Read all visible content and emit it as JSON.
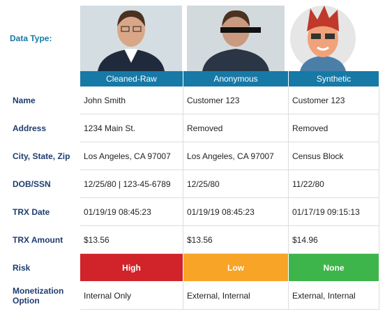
{
  "header": {
    "label": "Data Type:",
    "columns": [
      "Cleaned-Raw",
      "Anonymous",
      "Synthetic"
    ]
  },
  "table": {
    "rows": [
      {
        "label": "Name",
        "cells": [
          "John Smith",
          "Customer 123",
          "Customer 123"
        ]
      },
      {
        "label": "Address",
        "cells": [
          "1234 Main St.",
          "Removed",
          "Removed"
        ]
      },
      {
        "label": "City, State, Zip",
        "cells": [
          "Los Angeles, CA 97007",
          "Los Angeles, CA 97007",
          "Census Block"
        ]
      },
      {
        "label": "DOB/SSN",
        "cells": [
          "12/25/80 | 123-45-6789",
          "12/25/80",
          "11/22/80"
        ]
      },
      {
        "label": "TRX Date",
        "cells": [
          "01/19/19 08:45:23",
          "01/19/19 08:45:23",
          "01/17/19 09:15:13"
        ]
      },
      {
        "label": "TRX Amount",
        "cells": [
          "$13.56",
          "$13.56",
          "$14.96"
        ]
      },
      {
        "label": "Risk",
        "cells": [
          "High",
          "Low",
          "None"
        ]
      },
      {
        "label": "Monetization Option",
        "cells": [
          "Internal Only",
          "External, Internal",
          "External, Internal"
        ]
      }
    ]
  }
}
